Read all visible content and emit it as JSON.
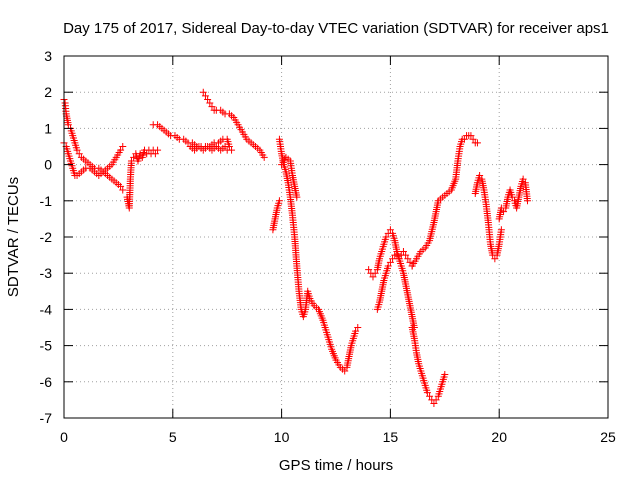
{
  "chart_data": {
    "type": "scatter",
    "title": "Day 175 of 2017, Sidereal Day-to-day VTEC variation (SDTVAR) for receiver aps1",
    "xlabel": "GPS time / hours",
    "ylabel": "SDTVAR / TECUs",
    "xlim": [
      0,
      25
    ],
    "ylim": [
      -7,
      3
    ],
    "xticks": [
      0,
      5,
      10,
      15,
      20,
      25
    ],
    "yticks": [
      -7,
      -6,
      -5,
      -4,
      -3,
      -2,
      -1,
      0,
      1,
      2,
      3
    ],
    "grid": true,
    "legend": "none",
    "marker": "plus",
    "color": "#ff0000",
    "series": [
      {
        "x": [
          0.0,
          0.1,
          0.2,
          0.3,
          0.4,
          0.5,
          0.6,
          0.8,
          1.0,
          1.2,
          1.4,
          1.6,
          1.8,
          2.0,
          2.2,
          2.4,
          2.6,
          2.7
        ],
        "y": [
          0.6,
          0.5,
          0.3,
          0.1,
          -0.1,
          -0.3,
          -0.3,
          -0.2,
          -0.1,
          -0.1,
          -0.2,
          -0.3,
          -0.2,
          -0.1,
          0.0,
          0.2,
          0.4,
          0.5
        ]
      },
      {
        "x": [
          0.0,
          0.05,
          0.1,
          0.2,
          0.3,
          0.4,
          0.5,
          0.6,
          0.7,
          0.8,
          1.0,
          1.2,
          1.4,
          1.6,
          1.8,
          2.0,
          2.2,
          2.4,
          2.6,
          2.7
        ],
        "y": [
          1.8,
          1.7,
          1.4,
          1.1,
          1.0,
          0.8,
          0.6,
          0.4,
          0.3,
          0.2,
          0.1,
          0.0,
          -0.1,
          -0.1,
          -0.2,
          -0.3,
          -0.4,
          -0.5,
          -0.6,
          -0.7
        ]
      },
      {
        "x": [
          2.9,
          3.0,
          3.05,
          3.1,
          3.2,
          3.3,
          3.4,
          3.5,
          3.6,
          3.7,
          3.8,
          3.9,
          4.0,
          4.1,
          4.2,
          4.3
        ],
        "y": [
          -0.9,
          -1.2,
          -0.4,
          0.1,
          0.2,
          0.3,
          0.1,
          0.3,
          0.2,
          0.4,
          0.3,
          0.4,
          0.3,
          0.4,
          0.3,
          0.4
        ]
      },
      {
        "x": [
          4.1,
          4.3,
          4.5,
          4.7,
          4.9,
          5.1,
          5.3,
          5.5,
          5.7,
          5.9,
          6.1,
          6.3,
          6.5,
          6.7,
          6.9,
          7.1,
          7.3,
          7.5,
          7.6,
          7.7
        ],
        "y": [
          1.1,
          1.1,
          1.0,
          0.9,
          0.8,
          0.8,
          0.7,
          0.7,
          0.6,
          0.6,
          0.5,
          0.5,
          0.5,
          0.5,
          0.6,
          0.6,
          0.7,
          0.7,
          0.5,
          0.4
        ]
      },
      {
        "x": [
          5.8,
          6.0,
          6.2,
          6.4,
          6.6,
          6.8,
          7.0,
          7.2,
          7.4,
          7.5
        ],
        "y": [
          0.5,
          0.4,
          0.5,
          0.4,
          0.5,
          0.4,
          0.5,
          0.4,
          0.5,
          0.4
        ]
      },
      {
        "x": [
          6.4,
          6.5,
          6.6,
          6.7,
          6.8,
          6.9,
          7.0,
          7.2,
          7.4,
          7.6,
          7.8,
          8.0,
          8.2,
          8.4,
          8.6,
          8.8,
          9.0,
          9.2
        ],
        "y": [
          2.0,
          1.9,
          1.8,
          1.7,
          1.6,
          1.5,
          1.5,
          1.5,
          1.4,
          1.4,
          1.3,
          1.1,
          0.9,
          0.7,
          0.6,
          0.5,
          0.4,
          0.2
        ]
      },
      {
        "x": [
          9.6,
          9.7,
          9.8,
          9.9
        ],
        "y": [
          -1.8,
          -1.5,
          -1.2,
          -1.0
        ]
      },
      {
        "x": [
          9.9,
          10.0,
          10.1,
          10.2,
          10.3,
          10.4,
          10.5,
          10.6,
          10.7,
          10.8,
          10.9,
          11.0,
          11.1,
          11.2,
          11.3,
          11.5,
          11.7,
          11.9,
          12.1,
          12.3,
          12.5,
          12.7,
          12.9,
          13.0,
          13.1,
          13.2,
          13.3,
          13.4,
          13.5
        ],
        "y": [
          0.7,
          0.3,
          0.0,
          -0.2,
          -0.5,
          -0.9,
          -1.4,
          -2.0,
          -2.8,
          -3.5,
          -4.0,
          -4.2,
          -4.0,
          -3.5,
          -3.7,
          -3.9,
          -4.0,
          -4.3,
          -4.7,
          -5.1,
          -5.4,
          -5.6,
          -5.7,
          -5.6,
          -5.3,
          -5.0,
          -4.8,
          -4.6,
          -4.5
        ]
      },
      {
        "x": [
          10.0,
          10.2,
          10.4,
          10.5,
          10.6,
          10.7
        ],
        "y": [
          0.0,
          0.2,
          0.1,
          -0.3,
          -0.6,
          -0.9
        ]
      },
      {
        "x": [
          14.0,
          14.1,
          14.2,
          14.3,
          14.4,
          14.5,
          14.6,
          14.7,
          14.8,
          14.9,
          15.0,
          15.1,
          15.2,
          15.3,
          15.4,
          15.5,
          15.6,
          15.7,
          15.8,
          15.9,
          16.0,
          16.1
        ],
        "y": [
          -2.9,
          -3.0,
          -3.1,
          -3.0,
          -2.9,
          -2.6,
          -2.4,
          -2.2,
          -2.0,
          -1.9,
          -1.8,
          -1.9,
          -2.1,
          -2.4,
          -2.6,
          -2.8,
          -3.0,
          -3.3,
          -3.6,
          -3.9,
          -4.2,
          -4.5
        ]
      },
      {
        "x": [
          14.4,
          14.5,
          14.6,
          14.7,
          14.8,
          14.9,
          15.0,
          15.1,
          15.2,
          15.3,
          15.4,
          15.5,
          15.6,
          15.7,
          15.8,
          15.9,
          16.0
        ],
        "y": [
          -4.0,
          -3.8,
          -3.5,
          -3.2,
          -3.0,
          -2.8,
          -2.7,
          -2.6,
          -2.5,
          -2.5,
          -2.6,
          -2.5,
          -2.4,
          -2.5,
          -2.6,
          -2.7,
          -2.8
        ]
      },
      {
        "x": [
          16.0,
          16.1,
          16.2,
          16.3,
          16.4,
          16.5,
          16.6,
          16.7,
          16.8,
          16.9,
          17.0,
          17.1,
          17.2,
          17.3,
          17.4,
          17.5
        ],
        "y": [
          -4.5,
          -4.8,
          -5.2,
          -5.5,
          -5.7,
          -5.9,
          -6.1,
          -6.3,
          -6.4,
          -6.5,
          -6.6,
          -6.5,
          -6.4,
          -6.2,
          -6.0,
          -5.8
        ]
      },
      {
        "x": [
          16.0,
          16.2,
          16.4,
          16.6,
          16.8,
          17.0,
          17.2,
          17.4,
          17.6,
          17.8,
          18.0,
          18.1,
          18.2,
          18.3,
          18.4,
          18.5,
          18.6,
          18.7,
          18.8,
          18.9,
          19.0
        ],
        "y": [
          -2.8,
          -2.6,
          -2.4,
          -2.3,
          -2.1,
          -1.6,
          -1.0,
          -0.9,
          -0.8,
          -0.7,
          -0.4,
          0.1,
          0.5,
          0.7,
          0.7,
          0.8,
          0.8,
          0.8,
          0.7,
          0.6,
          0.6
        ]
      },
      {
        "x": [
          18.9,
          19.0,
          19.1,
          19.2,
          19.3,
          19.4,
          19.5,
          19.6,
          19.7,
          19.8,
          19.9,
          20.0,
          20.1
        ],
        "y": [
          -0.8,
          -0.5,
          -0.3,
          -0.4,
          -0.7,
          -1.1,
          -1.6,
          -2.2,
          -2.5,
          -2.6,
          -2.5,
          -2.2,
          -1.8
        ]
      },
      {
        "x": [
          20.0,
          20.1,
          20.2,
          20.3,
          20.4,
          20.5,
          20.6,
          20.7,
          20.8,
          20.9,
          21.0,
          21.1,
          21.2,
          21.3
        ],
        "y": [
          -1.5,
          -1.2,
          -1.3,
          -1.2,
          -0.9,
          -0.7,
          -0.9,
          -1.0,
          -1.2,
          -0.9,
          -0.6,
          -0.4,
          -0.5,
          -1.0
        ]
      }
    ]
  }
}
